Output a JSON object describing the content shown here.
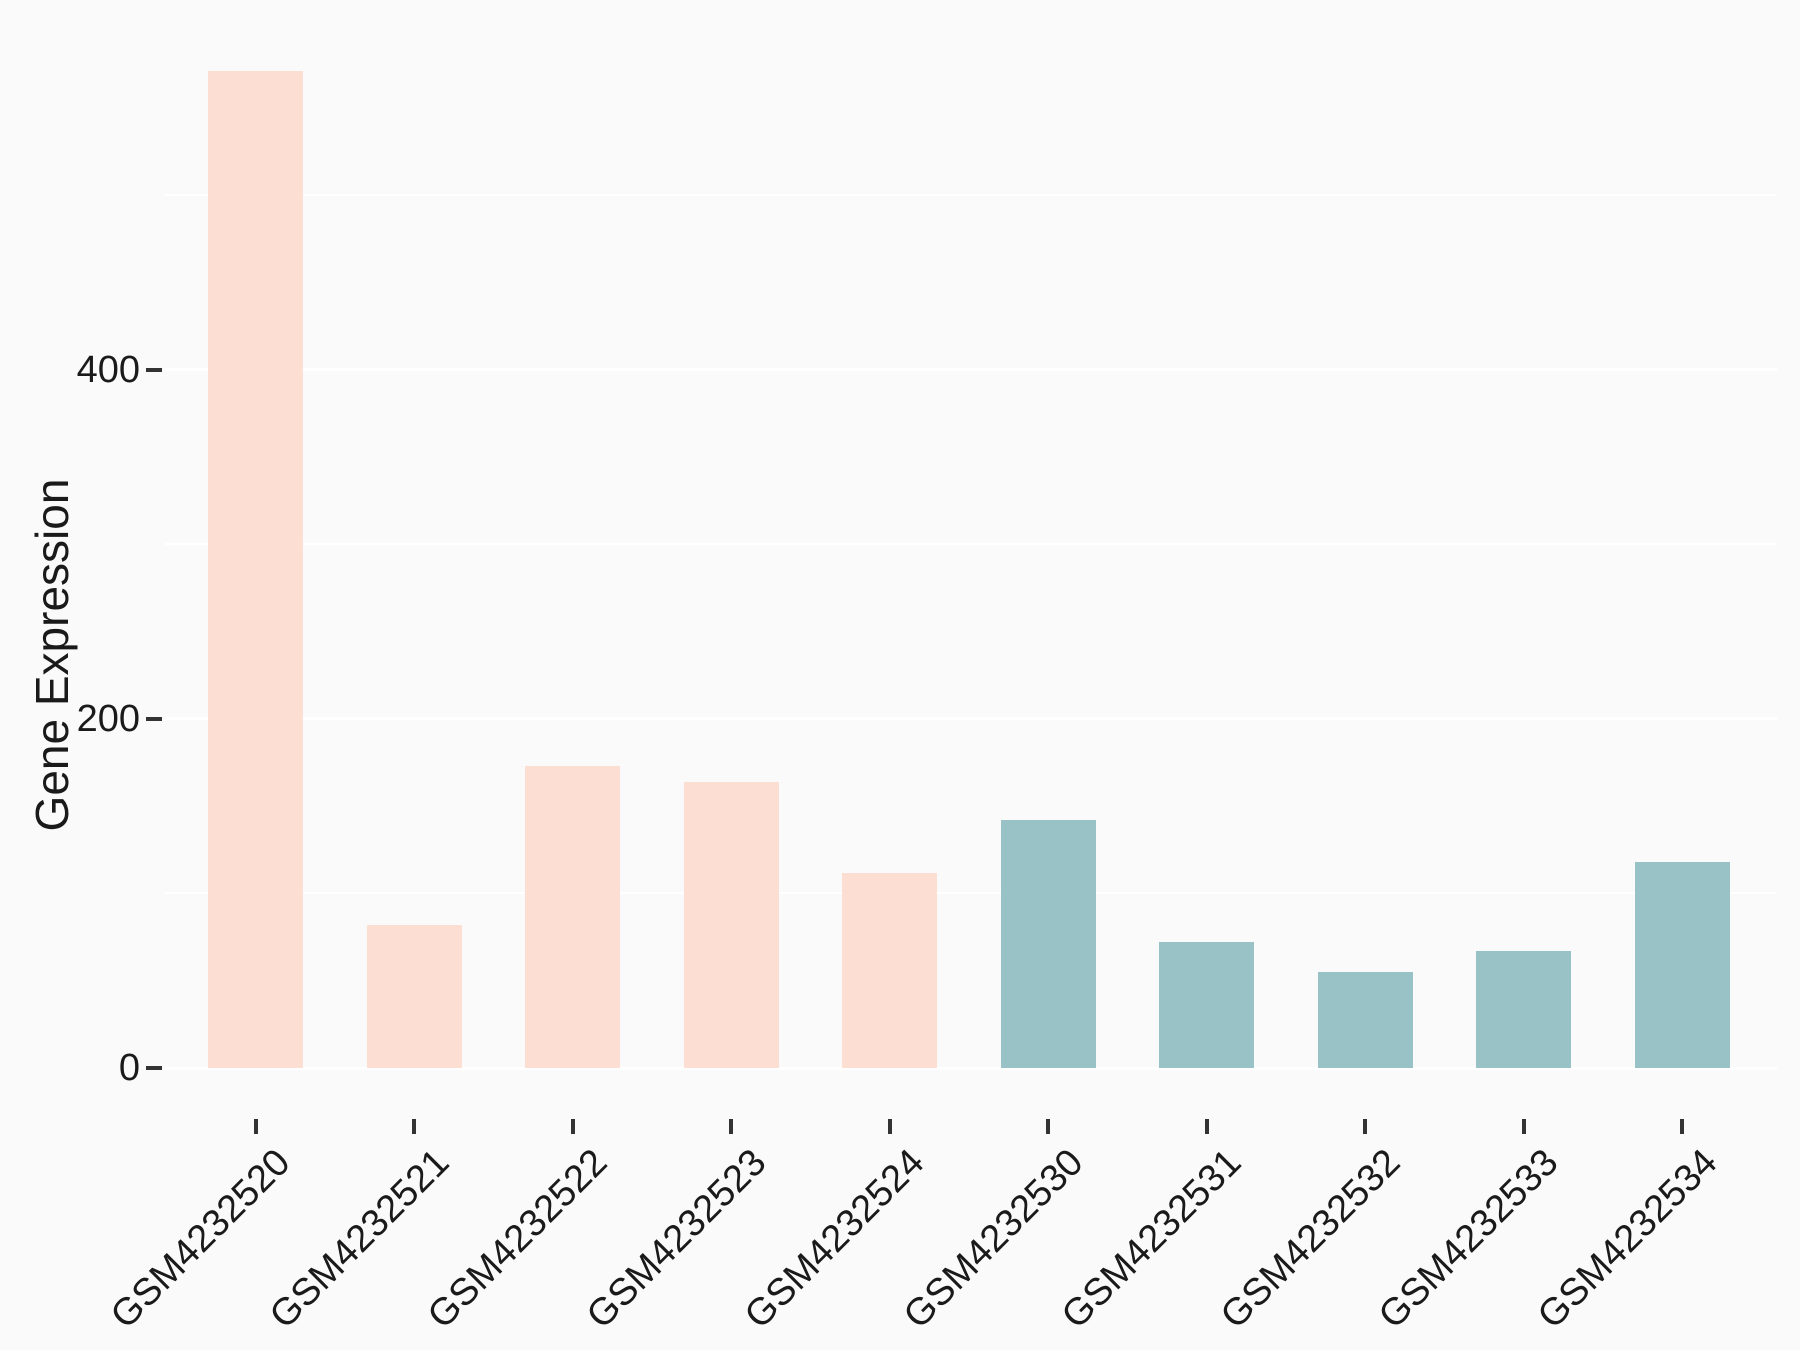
{
  "chart_data": {
    "type": "bar",
    "title": "",
    "ylabel": "Gene Expression",
    "xlabel": "",
    "categories": [
      "GSM4232520",
      "GSM4232521",
      "GSM4232522",
      "GSM4232523",
      "GSM4232524",
      "GSM4232530",
      "GSM4232531",
      "GSM4232532",
      "GSM4232533",
      "GSM4232534"
    ],
    "values": [
      571,
      82,
      173,
      164,
      112,
      142,
      72,
      55,
      67,
      118
    ],
    "groups": [
      "group1",
      "group1",
      "group1",
      "group1",
      "group1",
      "group2",
      "group2",
      "group2",
      "group2",
      "group2"
    ],
    "group_colors": {
      "group1": "#fcded3",
      "group2": "#99c2c7"
    },
    "yticks": [
      0,
      200,
      400
    ],
    "yticks_minor": [
      100,
      300,
      500
    ],
    "ylim": [
      0,
      589
    ],
    "legend": "none",
    "grid": {
      "color": "#ffffff",
      "major": true,
      "minor": true
    },
    "colors": {
      "background": "#fafafa",
      "grid": "#ffffff",
      "tick": "#333333",
      "text": "#1a1a1a"
    }
  }
}
